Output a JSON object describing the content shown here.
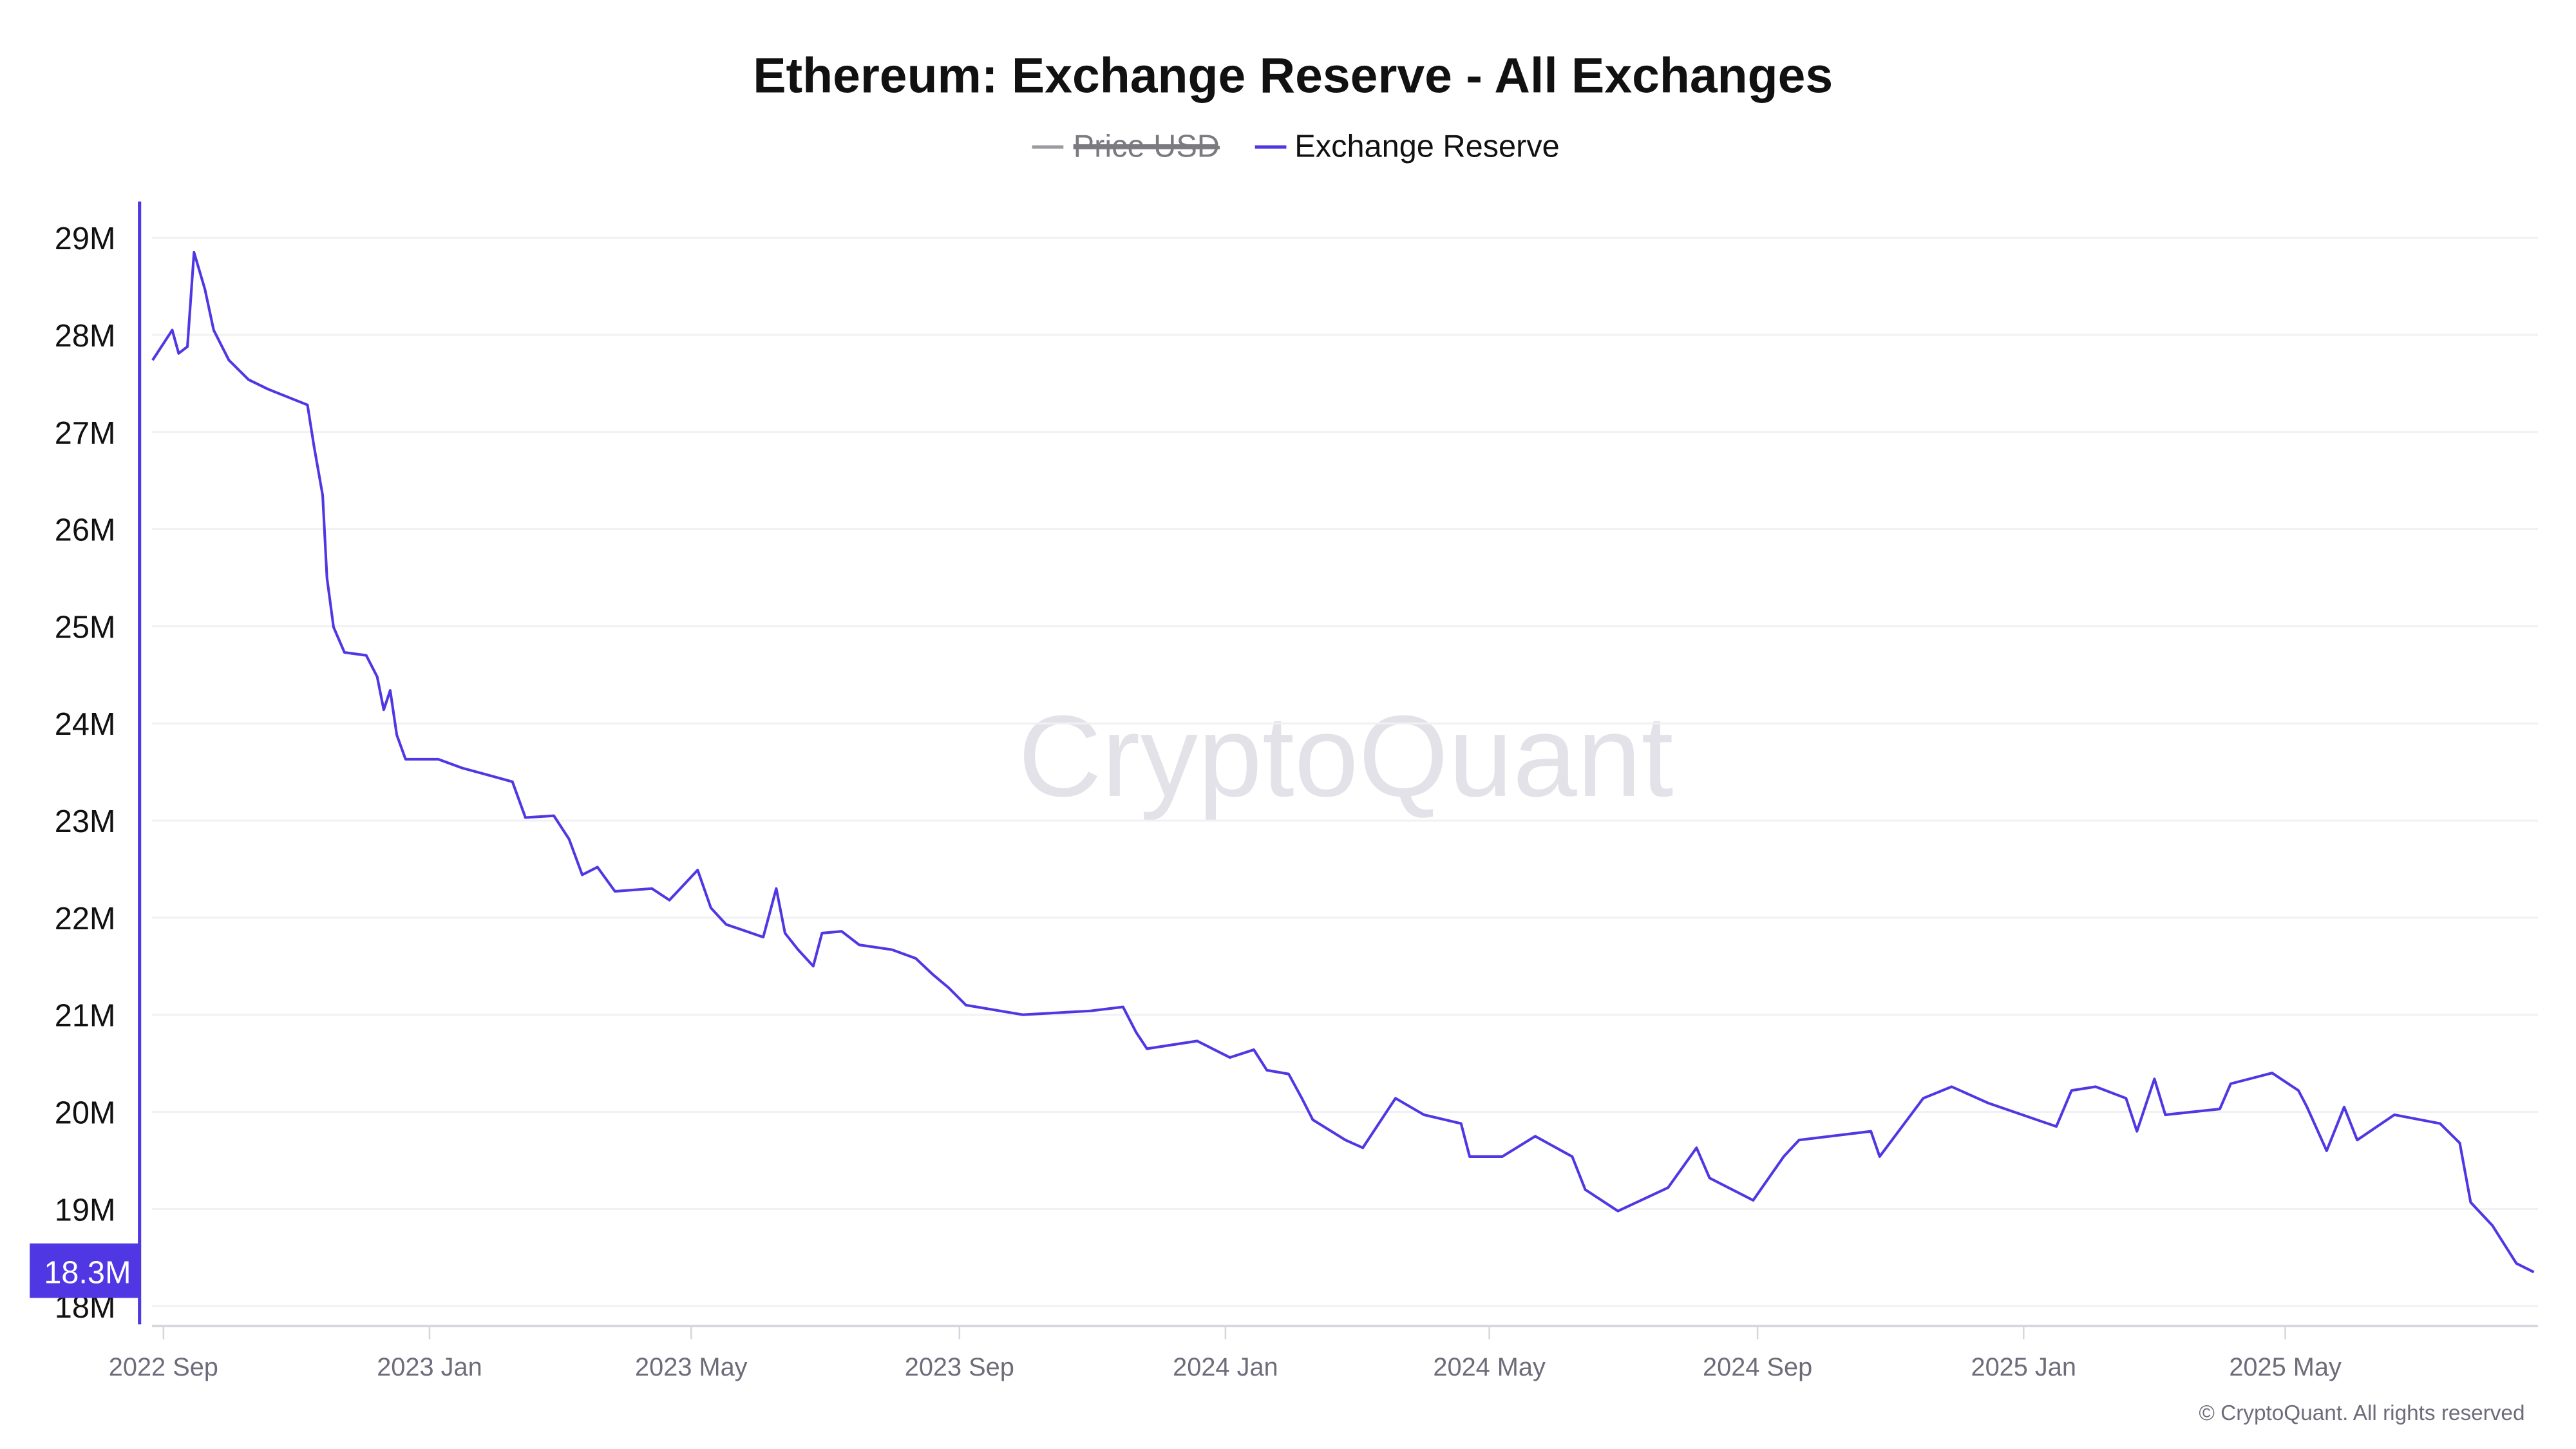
{
  "title": "Ethereum: Exchange Reserve - All Exchanges",
  "watermark": "CryptoQuant",
  "copyright": "© CryptoQuant. All rights reserved",
  "legend": [
    {
      "label": "Price USD",
      "color": "#9a9aa0",
      "hidden": true
    },
    {
      "label": "Exchange Reserve",
      "color": "#4f38e3",
      "hidden": false
    }
  ],
  "current_value_label": "18.3M",
  "colors": {
    "series": "#4f38e3",
    "axis_label": "#6e6c7a",
    "grid": "#f1f1f3"
  },
  "chart_data": {
    "type": "line",
    "title": "Ethereum: Exchange Reserve - All Exchanges",
    "xlabel": "",
    "ylabel": "",
    "ylim": [
      18,
      29
    ],
    "yticks": [
      "18M",
      "19M",
      "20M",
      "21M",
      "22M",
      "23M",
      "24M",
      "25M",
      "26M",
      "27M",
      "28M",
      "29M"
    ],
    "xticks": [
      {
        "date": "2022-09-01",
        "label": "2022 Sep"
      },
      {
        "date": "2023-01-01",
        "label": "2023 Jan"
      },
      {
        "date": "2023-05-01",
        "label": "2023 May"
      },
      {
        "date": "2023-09-01",
        "label": "2023 Sep"
      },
      {
        "date": "2024-01-01",
        "label": "2024 Jan"
      },
      {
        "date": "2024-05-01",
        "label": "2024 May"
      },
      {
        "date": "2024-09-01",
        "label": "2024 Sep"
      },
      {
        "date": "2025-01-01",
        "label": "2025 Jan"
      },
      {
        "date": "2025-05-01",
        "label": "2025 May"
      }
    ],
    "grid": true,
    "legend_position": "top-center",
    "series": [
      {
        "name": "Exchange Reserve",
        "unit": "M ETH",
        "points": [
          [
            "2022-08-27",
            27.74
          ],
          [
            "2022-09-05",
            28.05
          ],
          [
            "2022-09-08",
            27.81
          ],
          [
            "2022-09-12",
            27.88
          ],
          [
            "2022-09-15",
            28.85
          ],
          [
            "2022-09-20",
            28.47
          ],
          [
            "2022-09-24",
            28.05
          ],
          [
            "2022-10-01",
            27.74
          ],
          [
            "2022-10-10",
            27.54
          ],
          [
            "2022-10-19",
            27.44
          ],
          [
            "2022-11-06",
            27.28
          ],
          [
            "2022-11-09",
            26.86
          ],
          [
            "2022-11-13",
            26.35
          ],
          [
            "2022-11-15",
            25.5
          ],
          [
            "2022-11-18",
            24.99
          ],
          [
            "2022-11-23",
            24.73
          ],
          [
            "2022-12-03",
            24.7
          ],
          [
            "2022-12-08",
            24.48
          ],
          [
            "2022-12-11",
            24.14
          ],
          [
            "2022-12-14",
            24.34
          ],
          [
            "2022-12-17",
            23.88
          ],
          [
            "2022-12-21",
            23.63
          ],
          [
            "2023-01-05",
            23.63
          ],
          [
            "2023-01-16",
            23.54
          ],
          [
            "2023-02-08",
            23.4
          ],
          [
            "2023-02-14",
            23.03
          ],
          [
            "2023-02-27",
            23.05
          ],
          [
            "2023-03-06",
            22.81
          ],
          [
            "2023-03-12",
            22.44
          ],
          [
            "2023-03-19",
            22.52
          ],
          [
            "2023-03-27",
            22.27
          ],
          [
            "2023-04-13",
            22.3
          ],
          [
            "2023-04-21",
            22.18
          ],
          [
            "2023-05-04",
            22.49
          ],
          [
            "2023-05-10",
            22.1
          ],
          [
            "2023-05-17",
            21.93
          ],
          [
            "2023-06-03",
            21.8
          ],
          [
            "2023-06-09",
            22.3
          ],
          [
            "2023-06-13",
            21.84
          ],
          [
            "2023-06-19",
            21.67
          ],
          [
            "2023-06-26",
            21.5
          ],
          [
            "2023-06-30",
            21.84
          ],
          [
            "2023-07-09",
            21.86
          ],
          [
            "2023-07-17",
            21.72
          ],
          [
            "2023-08-01",
            21.67
          ],
          [
            "2023-08-12",
            21.58
          ],
          [
            "2023-08-20",
            21.41
          ],
          [
            "2023-08-27",
            21.28
          ],
          [
            "2023-09-04",
            21.1
          ],
          [
            "2023-09-30",
            21.0
          ],
          [
            "2023-10-31",
            21.04
          ],
          [
            "2023-11-15",
            21.08
          ],
          [
            "2023-11-21",
            20.82
          ],
          [
            "2023-11-26",
            20.65
          ],
          [
            "2023-12-19",
            20.73
          ],
          [
            "2024-01-03",
            20.56
          ],
          [
            "2024-01-14",
            20.64
          ],
          [
            "2024-01-20",
            20.43
          ],
          [
            "2024-01-30",
            20.39
          ],
          [
            "2024-02-05",
            20.14
          ],
          [
            "2024-02-10",
            19.92
          ],
          [
            "2024-02-25",
            19.71
          ],
          [
            "2024-03-04",
            19.63
          ],
          [
            "2024-03-19",
            20.14
          ],
          [
            "2024-04-01",
            19.97
          ],
          [
            "2024-04-18",
            19.88
          ],
          [
            "2024-04-22",
            19.54
          ],
          [
            "2024-05-07",
            19.54
          ],
          [
            "2024-05-22",
            19.75
          ],
          [
            "2024-06-08",
            19.54
          ],
          [
            "2024-06-14",
            19.2
          ],
          [
            "2024-06-29",
            18.98
          ],
          [
            "2024-07-22",
            19.22
          ],
          [
            "2024-08-04",
            19.63
          ],
          [
            "2024-08-10",
            19.32
          ],
          [
            "2024-08-30",
            19.09
          ],
          [
            "2024-09-13",
            19.54
          ],
          [
            "2024-09-20",
            19.71
          ],
          [
            "2024-10-23",
            19.8
          ],
          [
            "2024-10-27",
            19.54
          ],
          [
            "2024-11-16",
            20.14
          ],
          [
            "2024-11-29",
            20.26
          ],
          [
            "2024-12-16",
            20.09
          ],
          [
            "2025-01-16",
            19.85
          ],
          [
            "2025-01-23",
            20.22
          ],
          [
            "2025-02-03",
            20.26
          ],
          [
            "2025-02-17",
            20.14
          ],
          [
            "2025-02-22",
            19.8
          ],
          [
            "2025-03-02",
            20.34
          ],
          [
            "2025-03-07",
            19.97
          ],
          [
            "2025-04-01",
            20.03
          ],
          [
            "2025-04-06",
            20.29
          ],
          [
            "2025-04-25",
            20.4
          ],
          [
            "2025-05-07",
            20.22
          ],
          [
            "2025-05-11",
            20.05
          ],
          [
            "2025-05-20",
            19.6
          ],
          [
            "2025-05-28",
            20.05
          ],
          [
            "2025-06-03",
            19.71
          ],
          [
            "2025-06-20",
            19.97
          ],
          [
            "2025-07-11",
            19.88
          ],
          [
            "2025-07-20",
            19.68
          ],
          [
            "2025-07-25",
            19.07
          ],
          [
            "2025-08-04",
            18.83
          ],
          [
            "2025-08-15",
            18.44
          ],
          [
            "2025-08-23",
            18.35
          ]
        ]
      }
    ]
  }
}
